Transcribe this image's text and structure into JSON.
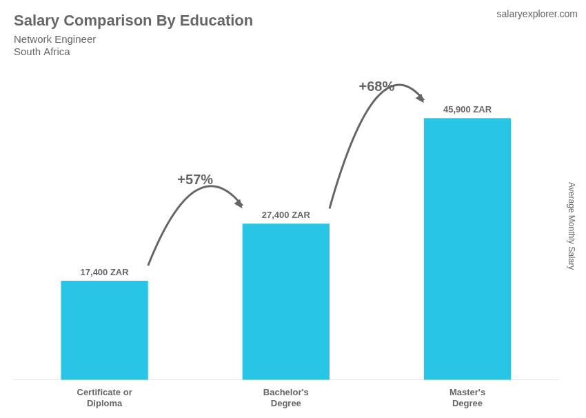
{
  "chart_data": {
    "type": "bar",
    "title": "Salary Comparison By Education",
    "subtitle": [
      "Network Engineer",
      "South Africa"
    ],
    "source": "salaryexplorer.com",
    "ylabel": "Average Monthly Salary",
    "categories": [
      "Certificate or\nDiploma",
      "Bachelor's\nDegree",
      "Master's\nDegree"
    ],
    "values": [
      17400,
      27400,
      45900
    ],
    "value_labels": [
      "17,400 ZAR",
      "27,400 ZAR",
      "45,900 ZAR"
    ],
    "data_labels": true,
    "annotations": [
      "+57%",
      "+68%"
    ],
    "color": "#29c5e6",
    "ylim": [
      0,
      54000
    ],
    "grid": false,
    "tick_labels": "x"
  }
}
